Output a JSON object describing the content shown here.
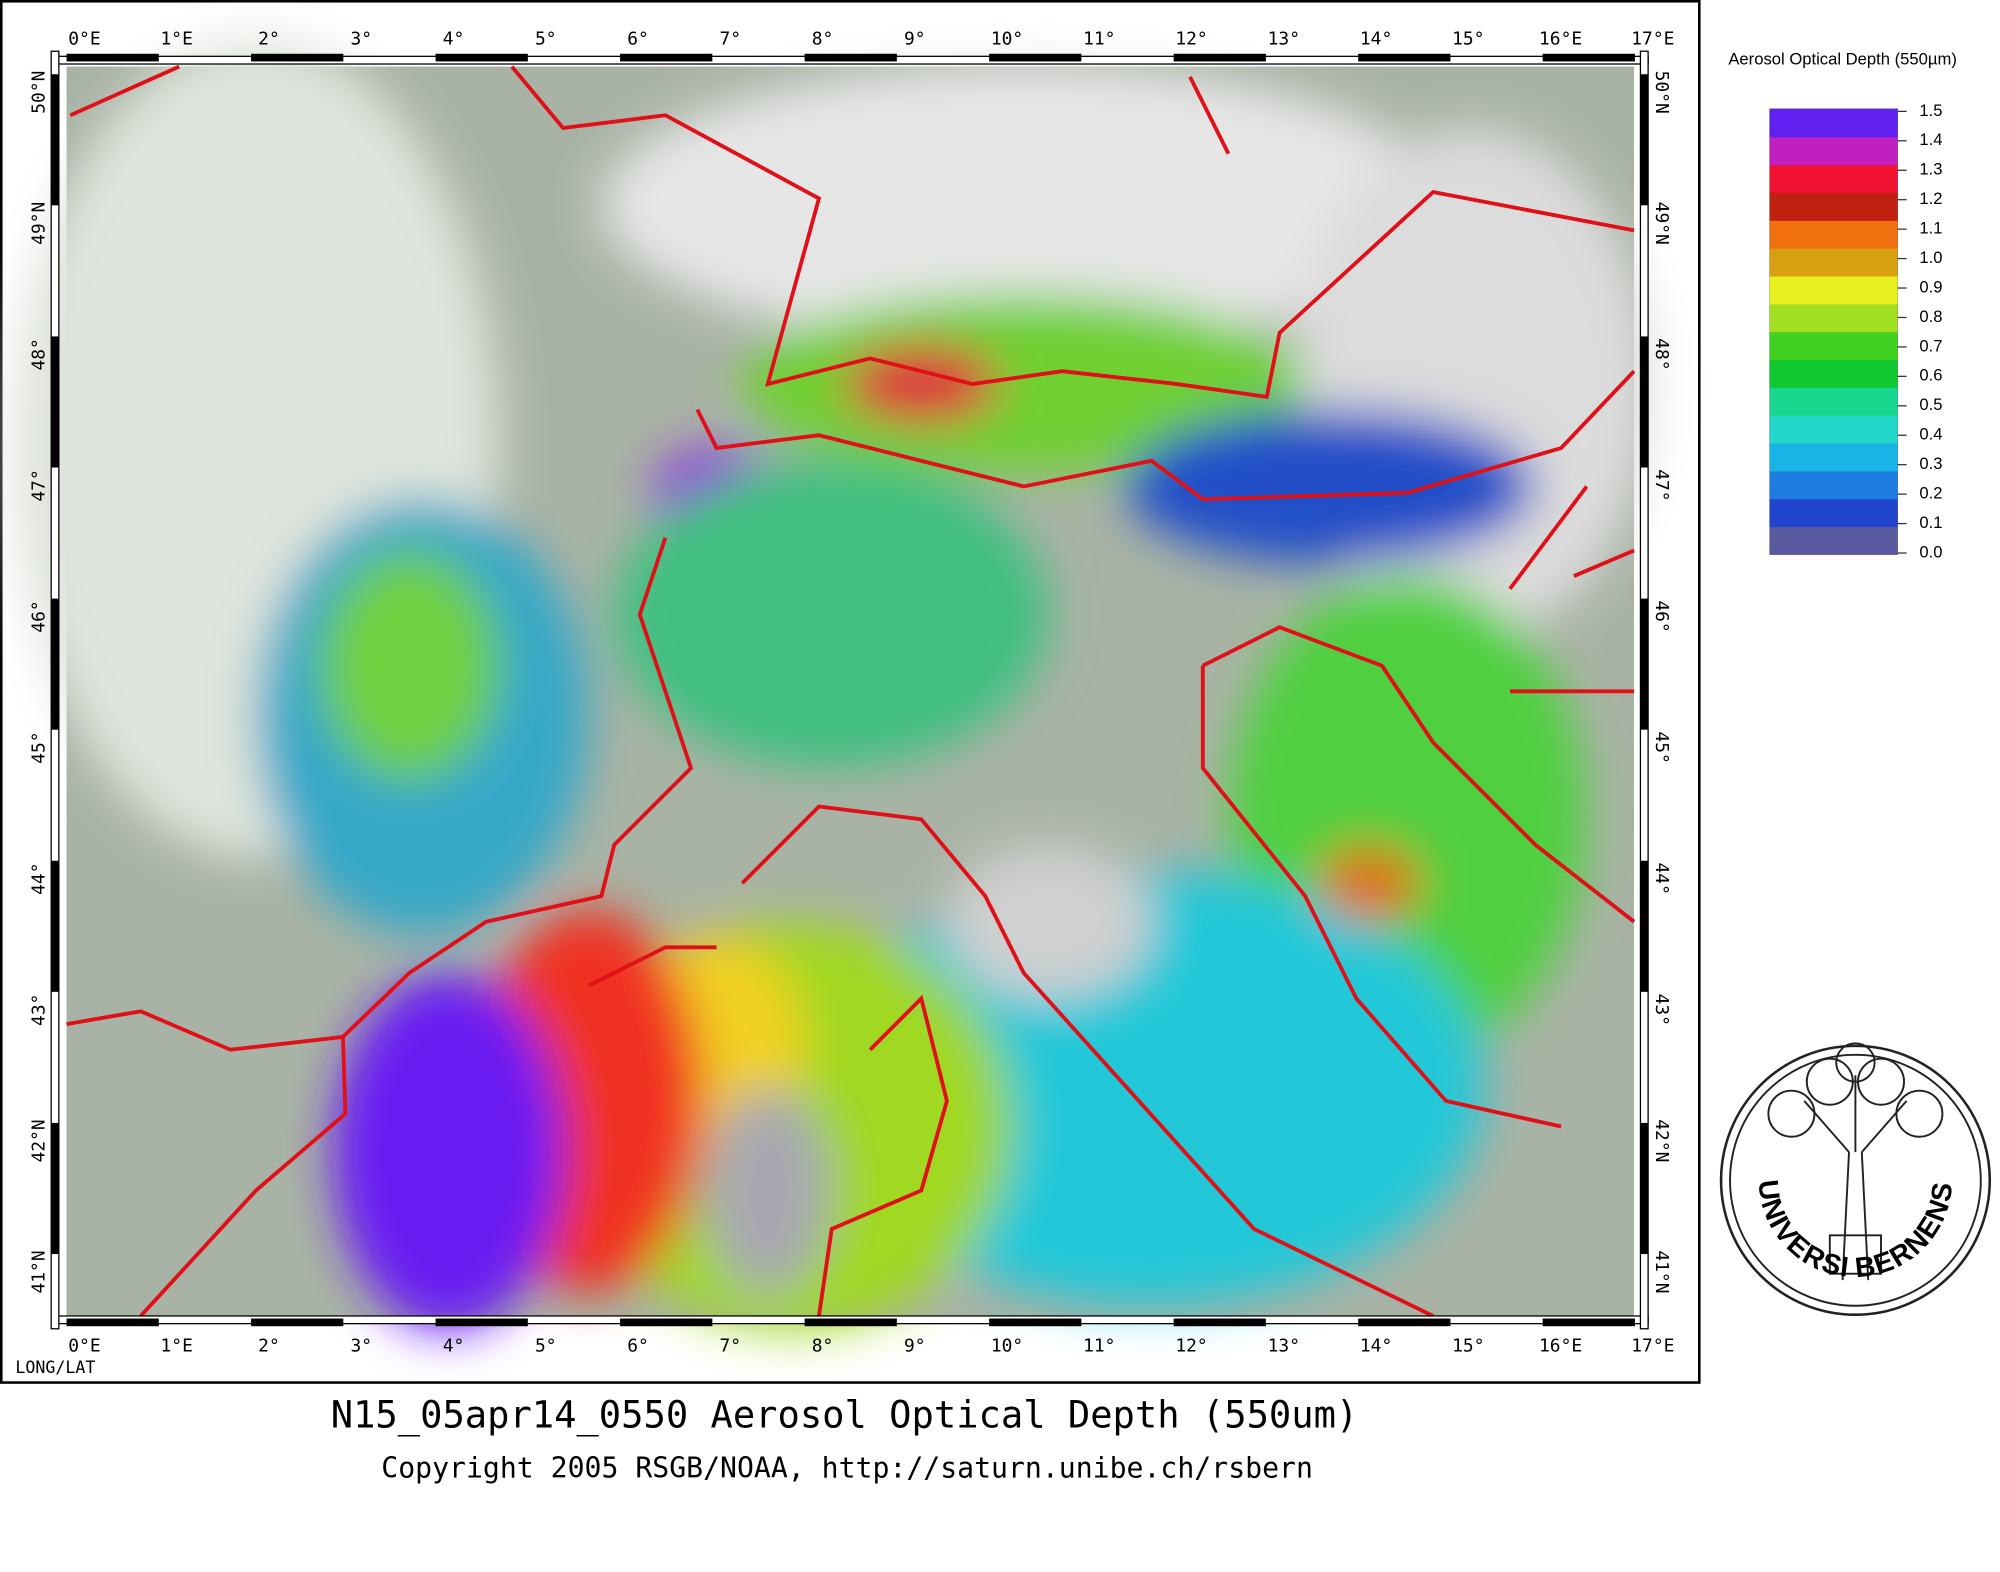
{
  "map": {
    "title": "N15_05apr14_0550 Aerosol Optical Depth (550um)",
    "copyright": "Copyright 2005 RSGB/NOAA, http://saturn.unibe.ch/rsbern",
    "projection_label": "LONG/LAT",
    "lon_ticks": [
      {
        "value": 0,
        "label": "0°E"
      },
      {
        "value": 1,
        "label": "1°E"
      },
      {
        "value": 2,
        "label": "2°"
      },
      {
        "value": 3,
        "label": "3°"
      },
      {
        "value": 4,
        "label": "4°"
      },
      {
        "value": 5,
        "label": "5°"
      },
      {
        "value": 6,
        "label": "6°"
      },
      {
        "value": 7,
        "label": "7°"
      },
      {
        "value": 8,
        "label": "8°"
      },
      {
        "value": 9,
        "label": "9°"
      },
      {
        "value": 10,
        "label": "10°"
      },
      {
        "value": 11,
        "label": "11°"
      },
      {
        "value": 12,
        "label": "12°"
      },
      {
        "value": 13,
        "label": "13°"
      },
      {
        "value": 14,
        "label": "14°"
      },
      {
        "value": 15,
        "label": "15°"
      },
      {
        "value": 16,
        "label": "16°E"
      },
      {
        "value": 17,
        "label": "17°E"
      }
    ],
    "lat_ticks": [
      {
        "value": 50,
        "label": "50°N"
      },
      {
        "value": 49,
        "label": "49°N"
      },
      {
        "value": 48,
        "label": "48°"
      },
      {
        "value": 47,
        "label": "47°"
      },
      {
        "value": 46,
        "label": "46°"
      },
      {
        "value": 45,
        "label": "45°"
      },
      {
        "value": 44,
        "label": "44°"
      },
      {
        "value": 43,
        "label": "43°"
      },
      {
        "value": 42,
        "label": "42°N"
      },
      {
        "value": 41,
        "label": "41°N"
      }
    ],
    "legend": {
      "title": "Aerosol Optical Depth (550µm)",
      "ticks": [
        {
          "value": 0,
          "label": "0.0"
        },
        0.1,
        0.2,
        0.3,
        0.4,
        0.5,
        0.6,
        0.7,
        0.8,
        0.9,
        {
          "value": 1,
          "label": "1.0"
        },
        1.1,
        1.2,
        1.3,
        1.4,
        1.5
      ],
      "colors": [
        "#5a5aa0",
        "#2244cc",
        "#1e7be0",
        "#18b4e6",
        "#22d6c8",
        "#18d890",
        "#10c830",
        "#40d020",
        "#a0e020",
        "#e8f020",
        "#d8a010",
        "#f07010",
        "#c02010",
        "#f01030",
        "#c020c0",
        "#6020f0"
      ]
    },
    "logo": {
      "left": "UNIVERSITAS",
      "right": "BERNENSIS"
    }
  }
}
